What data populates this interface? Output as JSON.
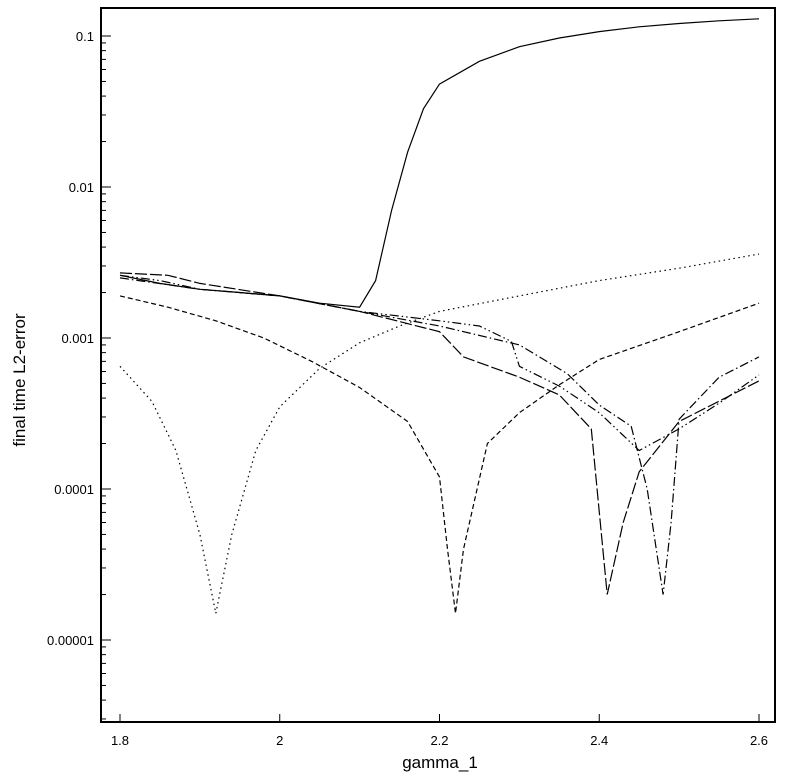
{
  "chart_data": {
    "type": "line",
    "title": "",
    "xlabel": "gamma_1",
    "ylabel": "final time L2-error",
    "xlim": [
      1.8,
      2.6
    ],
    "ylim": [
      3e-06,
      0.15
    ],
    "yscale": "log",
    "grid": false,
    "xticks": [
      {
        "value": 1.8,
        "label": "1.8"
      },
      {
        "value": 2.0,
        "label": "2"
      },
      {
        "value": 2.2,
        "label": "2.2"
      },
      {
        "value": 2.4,
        "label": "2.4"
      },
      {
        "value": 2.6,
        "label": "2.6"
      }
    ],
    "yticks": [
      {
        "value": 0.1,
        "label": "0.1"
      },
      {
        "value": 0.01,
        "label": "0.01"
      },
      {
        "value": 0.001,
        "label": "0.001"
      },
      {
        "value": 0.0001,
        "label": "0.0001"
      },
      {
        "value": 1e-05,
        "label": "0.00001"
      }
    ],
    "series": [
      {
        "style": "solid",
        "points": [
          [
            1.8,
            0.0026
          ],
          [
            1.85,
            0.0023
          ],
          [
            1.9,
            0.0021
          ],
          [
            1.95,
            0.002
          ],
          [
            2.0,
            0.0019
          ],
          [
            2.05,
            0.0017
          ],
          [
            2.1,
            0.0016
          ],
          [
            2.12,
            0.0024
          ],
          [
            2.14,
            0.007
          ],
          [
            2.16,
            0.017
          ],
          [
            2.18,
            0.033
          ],
          [
            2.2,
            0.048
          ],
          [
            2.25,
            0.068
          ],
          [
            2.3,
            0.085
          ],
          [
            2.35,
            0.097
          ],
          [
            2.4,
            0.107
          ],
          [
            2.45,
            0.115
          ],
          [
            2.5,
            0.121
          ],
          [
            2.55,
            0.126
          ],
          [
            2.6,
            0.13
          ]
        ]
      },
      {
        "style": "dotted",
        "points": [
          [
            1.8,
            0.00065
          ],
          [
            1.84,
            0.00038
          ],
          [
            1.87,
            0.00018
          ],
          [
            1.9,
            5e-05
          ],
          [
            1.92,
            1.5e-05
          ],
          [
            1.94,
            5e-05
          ],
          [
            1.97,
            0.00018
          ],
          [
            2.0,
            0.00035
          ],
          [
            2.05,
            0.00063
          ],
          [
            2.1,
            0.00093
          ],
          [
            2.15,
            0.0012
          ],
          [
            2.2,
            0.0015
          ],
          [
            2.3,
            0.0019
          ],
          [
            2.4,
            0.0024
          ],
          [
            2.5,
            0.0029
          ],
          [
            2.6,
            0.0036
          ]
        ]
      },
      {
        "style": "dashed",
        "points": [
          [
            1.8,
            0.0019
          ],
          [
            1.86,
            0.0016
          ],
          [
            1.92,
            0.0013
          ],
          [
            1.98,
            0.001
          ],
          [
            2.04,
            0.0007
          ],
          [
            2.1,
            0.00047
          ],
          [
            2.16,
            0.00028
          ],
          [
            2.2,
            0.00012
          ],
          [
            2.21,
            4e-05
          ],
          [
            2.22,
            1.5e-05
          ],
          [
            2.23,
            4e-05
          ],
          [
            2.26,
            0.0002
          ],
          [
            2.3,
            0.00032
          ],
          [
            2.35,
            0.00049
          ],
          [
            2.4,
            0.00072
          ],
          [
            2.5,
            0.0011
          ],
          [
            2.6,
            0.0017
          ]
        ]
      },
      {
        "style": "long-dash",
        "points": [
          [
            1.8,
            0.0027
          ],
          [
            1.86,
            0.0026
          ],
          [
            1.9,
            0.0023
          ],
          [
            2.0,
            0.0019
          ],
          [
            2.1,
            0.0015
          ],
          [
            2.2,
            0.0011
          ],
          [
            2.23,
            0.00075
          ],
          [
            2.3,
            0.00055
          ],
          [
            2.35,
            0.00042
          ],
          [
            2.39,
            0.00025
          ],
          [
            2.41,
            2e-05
          ],
          [
            2.43,
            6e-05
          ],
          [
            2.45,
            0.00013
          ],
          [
            2.5,
            0.00028
          ],
          [
            2.6,
            0.00052
          ]
        ]
      },
      {
        "style": "dash-dot",
        "points": [
          [
            1.8,
            0.0025
          ],
          [
            1.9,
            0.0021
          ],
          [
            2.0,
            0.0019
          ],
          [
            2.1,
            0.0015
          ],
          [
            2.2,
            0.0012
          ],
          [
            2.3,
            0.0009
          ],
          [
            2.36,
            0.00058
          ],
          [
            2.4,
            0.00036
          ],
          [
            2.44,
            0.00026
          ],
          [
            2.46,
            0.0001
          ],
          [
            2.48,
            2e-05
          ],
          [
            2.49,
            6e-05
          ],
          [
            2.5,
            0.00029
          ],
          [
            2.55,
            0.00055
          ],
          [
            2.6,
            0.00075
          ]
        ]
      },
      {
        "style": "dash-dot-dot",
        "points": [
          [
            1.8,
            0.0026
          ],
          [
            1.85,
            0.0024
          ],
          [
            1.9,
            0.0021
          ],
          [
            2.0,
            0.0019
          ],
          [
            2.1,
            0.0015
          ],
          [
            2.2,
            0.0013
          ],
          [
            2.25,
            0.0012
          ],
          [
            2.29,
            0.00095
          ],
          [
            2.3,
            0.00065
          ],
          [
            2.35,
            0.00048
          ],
          [
            2.4,
            0.00032
          ],
          [
            2.45,
            0.00018
          ],
          [
            2.5,
            0.00025
          ],
          [
            2.55,
            0.00037
          ],
          [
            2.6,
            0.00057
          ]
        ]
      }
    ]
  }
}
